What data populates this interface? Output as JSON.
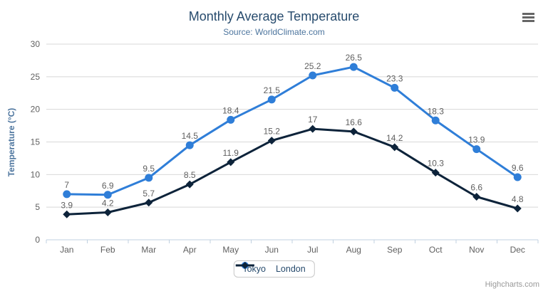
{
  "chart_data": {
    "type": "line",
    "title": "Monthly Average Temperature",
    "subtitle": "Source: WorldClimate.com",
    "categories": [
      "Jan",
      "Feb",
      "Mar",
      "Apr",
      "May",
      "Jun",
      "Jul",
      "Aug",
      "Sep",
      "Oct",
      "Nov",
      "Dec"
    ],
    "series": [
      {
        "name": "Tokyo",
        "marker": "circle",
        "color": "#2f7ed8",
        "values": [
          7,
          6.9,
          9.5,
          14.5,
          18.4,
          21.5,
          25.2,
          26.5,
          23.3,
          18.3,
          13.9,
          9.6
        ]
      },
      {
        "name": "London",
        "marker": "diamond",
        "color": "#0d233a",
        "values": [
          3.9,
          4.2,
          5.7,
          8.5,
          11.9,
          15.2,
          17,
          16.6,
          14.2,
          10.3,
          6.6,
          4.8
        ]
      }
    ],
    "xlabel": "",
    "ylabel": "Temperature (°C)",
    "ylim": [
      0,
      30
    ],
    "ytick_step": 5,
    "grid": true,
    "data_labels": true,
    "legend_position": "bottom-center",
    "credits": "Highcharts.com"
  },
  "colors": {
    "title": "#274b6d",
    "subtitle": "#4d759e",
    "axis_title": "#4d759e",
    "axis_label": "#606060",
    "data_label": "#606060",
    "grid": "#d8d8d8",
    "axis_line": "#c0d0e0",
    "legend_border": "#c8c8c8",
    "legend_text": "#274b6d",
    "credits": "#999999",
    "menu_icon": "#666666"
  }
}
